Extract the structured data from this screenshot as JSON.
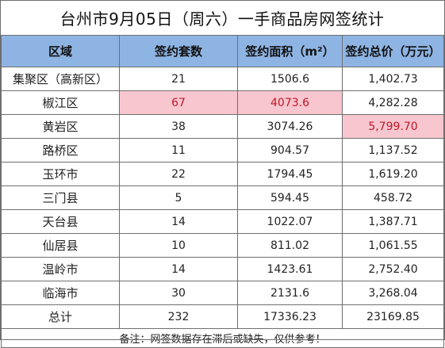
{
  "title": "台州市9月05日（周六）一手商品房网签统计",
  "headers": [
    "区域",
    "签约套数",
    "签约面积（m²）",
    "签约总价（万元）"
  ],
  "rows": [
    {
      "region": "集聚区（高新区）",
      "units": "21",
      "area": "1506.6",
      "price": "1,402.73"
    },
    {
      "region": "椒江区",
      "units": "67",
      "area": "4073.6",
      "price": "4,282.28"
    },
    {
      "region": "黄岩区",
      "units": "38",
      "area": "3074.26",
      "price": "5,799.70"
    },
    {
      "region": "路桥区",
      "units": "11",
      "area": "904.57",
      "price": "1,137.52"
    },
    {
      "region": "玉环市",
      "units": "22",
      "area": "1794.45",
      "price": "1,619.20"
    },
    {
      "region": "三门县",
      "units": "5",
      "area": "594.45",
      "price": "458.72"
    },
    {
      "region": "天台县",
      "units": "14",
      "area": "1022.07",
      "price": "1,387.71"
    },
    {
      "region": "仙居县",
      "units": "10",
      "area": "811.02",
      "price": "1,061.55"
    },
    {
      "region": "温岭市",
      "units": "14",
      "area": "1423.61",
      "price": "2,752.40"
    },
    {
      "region": "临海市",
      "units": "30",
      "area": "2131.6",
      "price": "3,268.04"
    }
  ],
  "total": {
    "label": "总计",
    "units": "232",
    "area": "17336.23",
    "price": "23169.85"
  },
  "footnote": "备注：网签数据存在滞后或缺失，仅供参考！",
  "colors": {
    "header_bg": "#8eb4e3",
    "highlight_bg": "#f8c6cf",
    "highlight_text": "#c0182a",
    "grid_line": "#6f6f6f"
  }
}
